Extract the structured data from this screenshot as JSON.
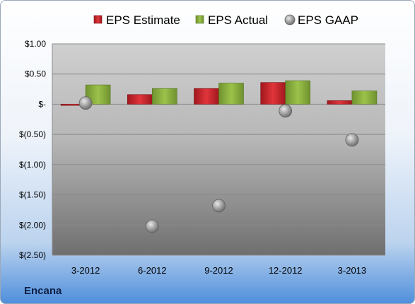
{
  "company_label": "Encana",
  "chart_data": {
    "type": "bar",
    "categories": [
      "3-2012",
      "6-2012",
      "9-2012",
      "12-2012",
      "3-2013"
    ],
    "series": [
      {
        "name": "EPS Estimate",
        "kind": "bar",
        "color": "#c0262c",
        "values": [
          -0.02,
          0.16,
          0.26,
          0.36,
          0.06
        ]
      },
      {
        "name": "EPS Actual",
        "kind": "bar",
        "color": "#86ad3c",
        "values": [
          0.32,
          0.26,
          0.35,
          0.39,
          0.22
        ]
      },
      {
        "name": "EPS GAAP",
        "kind": "marker",
        "color": "#a0a0a0",
        "values": [
          0.02,
          -2.02,
          -1.68,
          -0.11,
          -0.59
        ]
      }
    ],
    "ylim": [
      -2.5,
      1.0
    ],
    "yticks": [
      1.0,
      0.5,
      0.0,
      -0.5,
      -1.0,
      -1.5,
      -2.0,
      -2.5
    ],
    "ytick_labels": [
      "$1.00",
      "$0.50",
      "$-",
      "$(0.50)",
      "$(1.00)",
      "$(1.50)",
      "$(2.00)",
      "$(2.50)"
    ],
    "xlabel": "",
    "ylabel": "",
    "grid": true,
    "legend_position": "top"
  }
}
